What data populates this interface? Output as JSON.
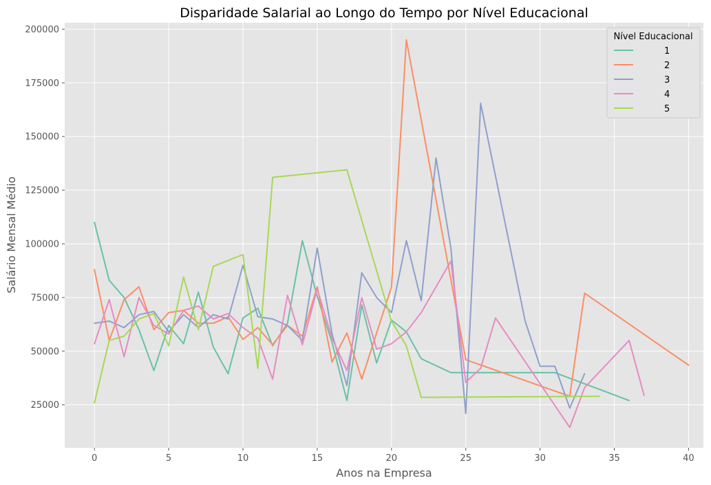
{
  "chart_data": {
    "type": "line",
    "title": "Disparidade Salarial ao Longo do Tempo por Nível Educacional",
    "xlabel": "Anos na Empresa",
    "ylabel": "Salário Mensal Médio",
    "xlim": [
      -2,
      41
    ],
    "ylim": [
      5000,
      203000
    ],
    "xticks": [
      0,
      5,
      10,
      15,
      20,
      25,
      30,
      35,
      40
    ],
    "yticks": [
      25000,
      50000,
      75000,
      100000,
      125000,
      150000,
      175000,
      200000
    ],
    "grid": true,
    "legend": {
      "title": "Nível Educacional",
      "placement": "top-right"
    },
    "series": [
      {
        "name": "1",
        "color": "#66c2a5",
        "points": [
          [
            0,
            110000
          ],
          [
            1,
            83000
          ],
          [
            2,
            75000
          ],
          [
            3,
            60000
          ],
          [
            4,
            41000
          ],
          [
            5,
            62000
          ],
          [
            6,
            53500
          ],
          [
            7,
            77500
          ],
          [
            8,
            52000
          ],
          [
            9,
            39500
          ],
          [
            10,
            65500
          ],
          [
            11,
            70000
          ],
          [
            12,
            52500
          ],
          [
            13,
            63000
          ],
          [
            14,
            101500
          ],
          [
            15,
            75500
          ],
          [
            16,
            54000
          ],
          [
            17,
            27000
          ],
          [
            18,
            71500
          ],
          [
            19,
            44500
          ],
          [
            20,
            64500
          ],
          [
            21,
            59000
          ],
          [
            22,
            46500
          ],
          [
            24,
            40000
          ],
          [
            31,
            40000
          ],
          [
            36,
            27000
          ]
        ]
      },
      {
        "name": "2",
        "color": "#fc8d62",
        "points": [
          [
            0,
            88000
          ],
          [
            1,
            55000
          ],
          [
            2,
            74000
          ],
          [
            3,
            80000
          ],
          [
            4,
            60000
          ],
          [
            5,
            68000
          ],
          [
            6,
            69000
          ],
          [
            7,
            63000
          ],
          [
            8,
            63000
          ],
          [
            9,
            66000
          ],
          [
            10,
            55500
          ],
          [
            11,
            61000
          ],
          [
            12,
            53000
          ],
          [
            13,
            62000
          ],
          [
            14,
            57000
          ],
          [
            15,
            80000
          ],
          [
            16,
            45000
          ],
          [
            17,
            58500
          ],
          [
            18,
            37000
          ],
          [
            20,
            80000
          ],
          [
            21,
            195000
          ],
          [
            25,
            46000
          ],
          [
            32,
            29000
          ],
          [
            33,
            77000
          ],
          [
            40,
            43500
          ]
        ]
      },
      {
        "name": "3",
        "color": "#8da0cb",
        "points": [
          [
            0,
            63000
          ],
          [
            1,
            64000
          ],
          [
            2,
            61000
          ],
          [
            3,
            67000
          ],
          [
            4,
            68500
          ],
          [
            5,
            59000
          ],
          [
            6,
            67000
          ],
          [
            7,
            61000
          ],
          [
            8,
            67000
          ],
          [
            9,
            65000
          ],
          [
            10,
            90000
          ],
          [
            11,
            66000
          ],
          [
            12,
            65000
          ],
          [
            13,
            62000
          ],
          [
            14,
            55000
          ],
          [
            15,
            98000
          ],
          [
            16,
            58000
          ],
          [
            17,
            34000
          ],
          [
            18,
            86500
          ],
          [
            19,
            75000
          ],
          [
            20,
            68000
          ],
          [
            21,
            101500
          ],
          [
            22,
            73500
          ],
          [
            23,
            140000
          ],
          [
            24,
            98000
          ],
          [
            25,
            21000
          ],
          [
            26,
            165500
          ],
          [
            29,
            64000
          ],
          [
            30,
            43000
          ],
          [
            31,
            43000
          ],
          [
            32,
            23500
          ],
          [
            33,
            39500
          ]
        ]
      },
      {
        "name": "4",
        "color": "#e78ac3",
        "points": [
          [
            0,
            53500
          ],
          [
            1,
            74000
          ],
          [
            2,
            47500
          ],
          [
            3,
            75000
          ],
          [
            4,
            62000
          ],
          [
            5,
            58000
          ],
          [
            6,
            69000
          ],
          [
            7,
            71000
          ],
          [
            8,
            65000
          ],
          [
            9,
            67500
          ],
          [
            10,
            61000
          ],
          [
            11,
            56000
          ],
          [
            12,
            37000
          ],
          [
            13,
            76000
          ],
          [
            14,
            53000
          ],
          [
            15,
            79000
          ],
          [
            16,
            56000
          ],
          [
            17,
            41000
          ],
          [
            18,
            75000
          ],
          [
            19,
            51000
          ],
          [
            20,
            53500
          ],
          [
            21,
            59000
          ],
          [
            22,
            68000
          ],
          [
            24,
            92000
          ],
          [
            25,
            35500
          ],
          [
            26,
            42000
          ],
          [
            27,
            65500
          ],
          [
            32,
            14500
          ],
          [
            33,
            33000
          ],
          [
            36,
            55000
          ],
          [
            37,
            29500
          ]
        ]
      },
      {
        "name": "5",
        "color": "#a6d854",
        "points": [
          [
            0,
            26000
          ],
          [
            1,
            55000
          ],
          [
            2,
            57000
          ],
          [
            3,
            65000
          ],
          [
            4,
            67500
          ],
          [
            5,
            52500
          ],
          [
            6,
            84500
          ],
          [
            7,
            60000
          ],
          [
            8,
            89500
          ],
          [
            10,
            95000
          ],
          [
            11,
            42000
          ],
          [
            12,
            131000
          ],
          [
            17,
            134500
          ],
          [
            20,
            64000
          ],
          [
            21,
            52500
          ],
          [
            22,
            28500
          ],
          [
            34,
            29000
          ]
        ]
      }
    ]
  }
}
